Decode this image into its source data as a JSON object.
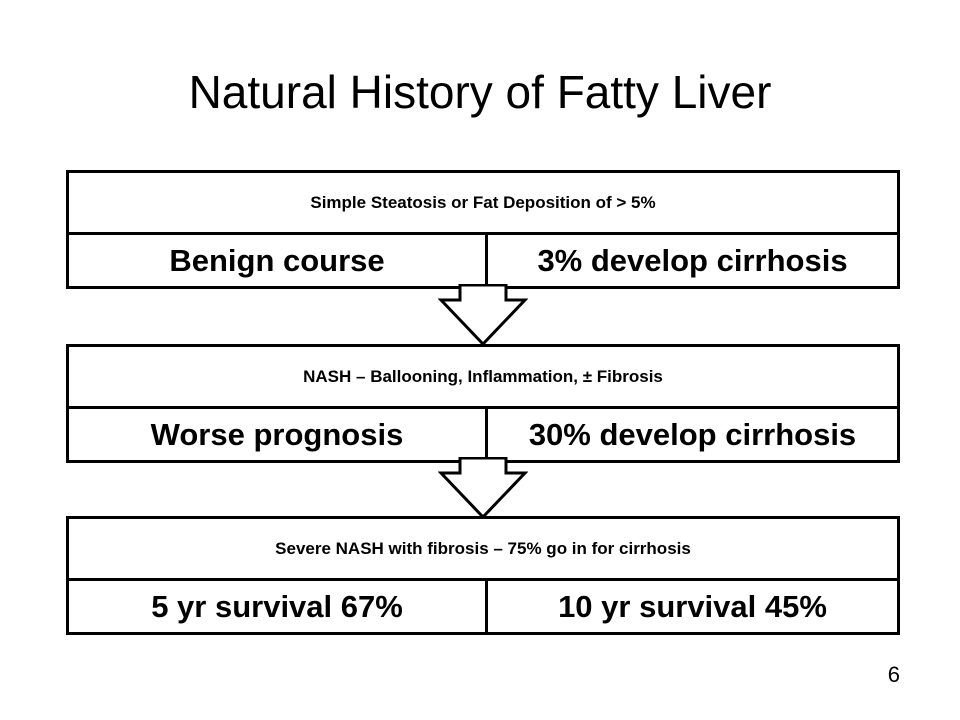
{
  "slide": {
    "title": "Natural History of Fatty Liver",
    "page_number": "6"
  },
  "stages": [
    {
      "header": "Simple Steatosis or Fat Deposition of > 5%",
      "left": "Benign course",
      "right": "3% develop cirrhosis"
    },
    {
      "header": "NASH – Ballooning, Inflammation, ± Fibrosis",
      "left": "Worse prognosis",
      "right": "30% develop cirrhosis"
    },
    {
      "header": "Severe NASH with fibrosis – 75% go in for cirrhosis",
      "left": "5 yr survival 67%",
      "right": "10 yr survival 45%"
    }
  ]
}
